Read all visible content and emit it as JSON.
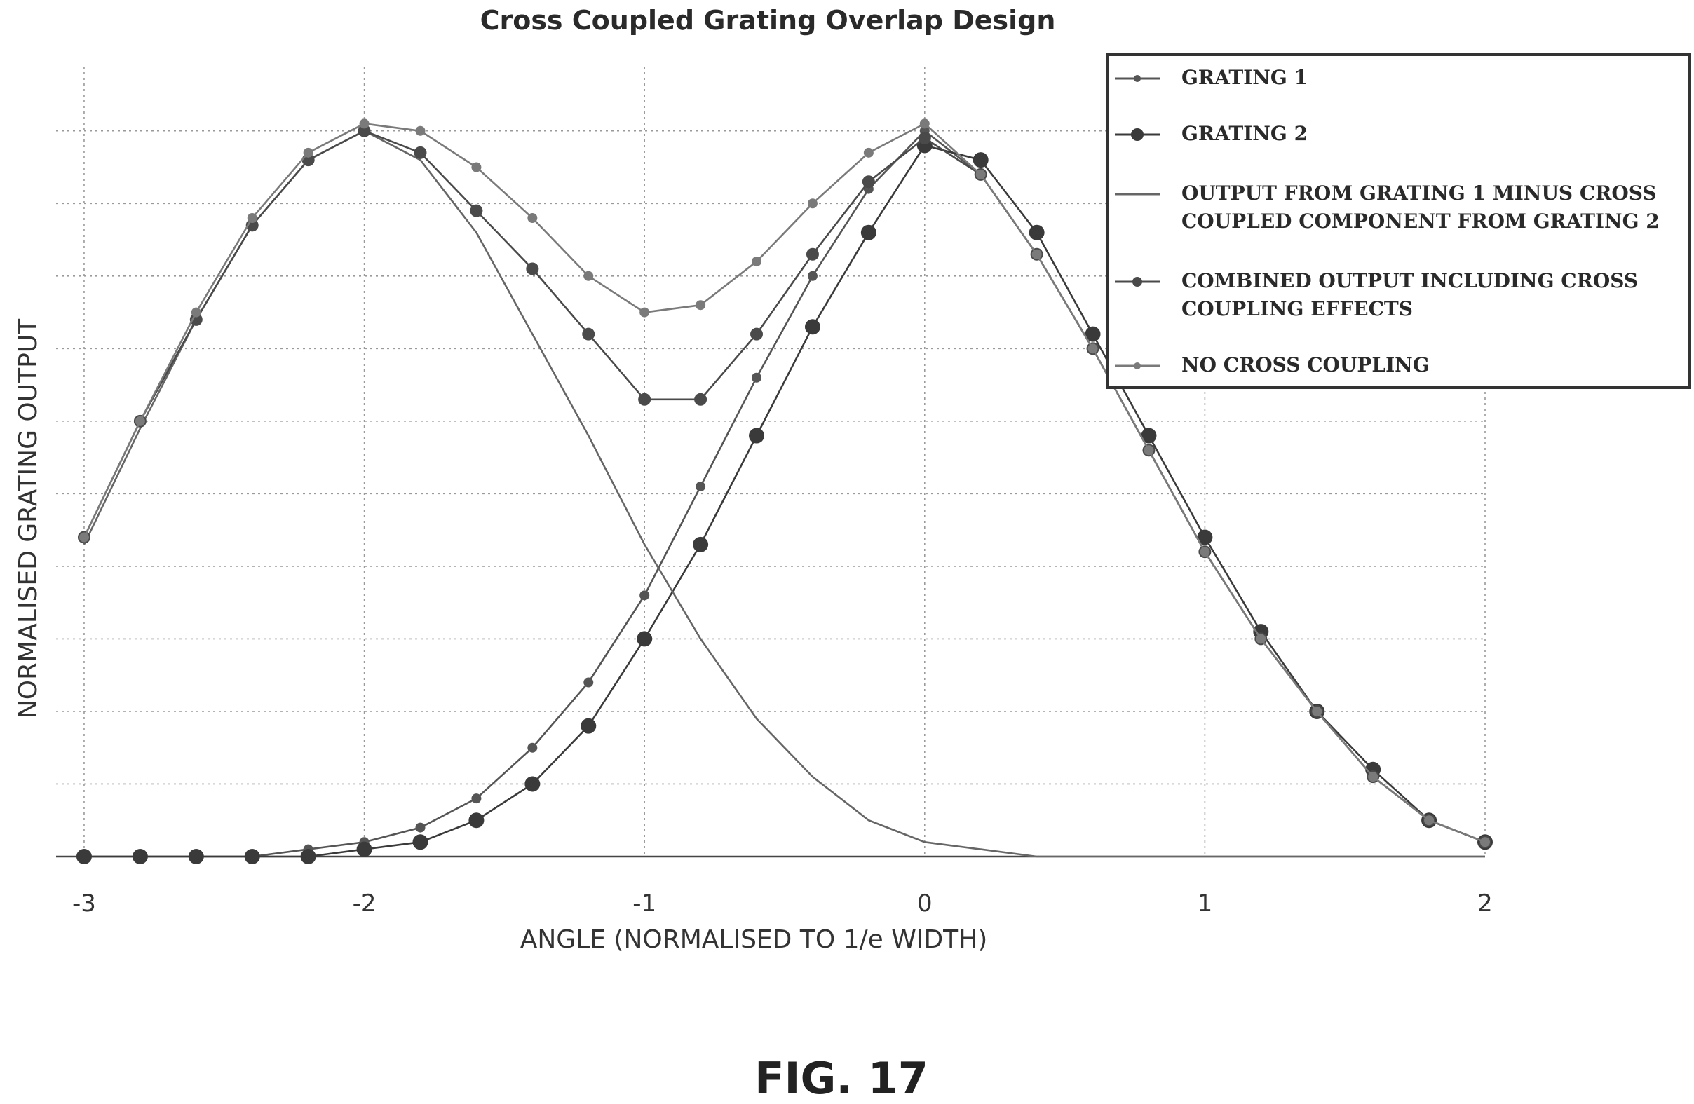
{
  "figure_caption": "FIG. 17",
  "chart_data": {
    "type": "line",
    "title": "Cross Coupled Grating Overlap Design",
    "xlabel": "ANGLE (NORMALISED TO 1/e WIDTH)",
    "ylabel": "NORMALISED GRATING OUTPUT",
    "xlim": [
      -3.1,
      2.0
    ],
    "ylim": [
      0,
      1.05
    ],
    "xticks": [
      -3,
      -2,
      -1,
      0,
      1,
      2
    ],
    "xtick_labels": [
      "-3",
      "-2",
      "-1",
      "0",
      "1",
      "2"
    ],
    "grid": true,
    "legend_position": "top-right",
    "series": [
      {
        "name": "GRATING 1",
        "marker": "small-dot",
        "color": "#555555",
        "x": [
          -3.0,
          -2.8,
          -2.6,
          -2.4,
          -2.2,
          -2.0,
          -1.8,
          -1.6,
          -1.4,
          -1.2,
          -1.0,
          -0.8,
          -0.6,
          -0.4,
          -0.2,
          0.0,
          0.2,
          0.4,
          0.6,
          0.8,
          1.0,
          1.2,
          1.4,
          1.6,
          1.8,
          2.0
        ],
        "y": [
          0.0,
          0.0,
          0.0,
          0.0,
          0.01,
          0.02,
          0.04,
          0.08,
          0.15,
          0.24,
          0.36,
          0.51,
          0.66,
          0.8,
          0.92,
          1.0,
          0.94,
          0.83,
          0.7,
          0.56,
          0.42,
          0.3,
          0.2,
          0.11,
          0.05,
          0.02
        ]
      },
      {
        "name": "GRATING 2",
        "marker": "large-dot",
        "color": "#3a3a3a",
        "x": [
          -3.0,
          -2.8,
          -2.6,
          -2.4,
          -2.2,
          -2.0,
          -1.8,
          -1.6,
          -1.4,
          -1.2,
          -1.0,
          -0.8,
          -0.6,
          -0.4,
          -0.2,
          0.0,
          0.2,
          0.4,
          0.6,
          0.8,
          1.0,
          1.2,
          1.4,
          1.6,
          1.8,
          2.0
        ],
        "y": [
          0.0,
          0.0,
          0.0,
          0.0,
          0.0,
          0.01,
          0.02,
          0.05,
          0.1,
          0.18,
          0.3,
          0.43,
          0.58,
          0.73,
          0.86,
          0.98,
          0.96,
          0.86,
          0.72,
          0.58,
          0.44,
          0.31,
          0.2,
          0.12,
          0.05,
          0.02
        ]
      },
      {
        "name": "OUTPUT FROM GRATING 1 MINUS CROSS COUPLED COMPONENT FROM GRATING 2",
        "marker": "none",
        "color": "#666666",
        "x": [
          -3.0,
          -2.8,
          -2.6,
          -2.4,
          -2.2,
          -2.0,
          -1.8,
          -1.6,
          -1.4,
          -1.2,
          -1.0,
          -0.8,
          -0.6,
          -0.4,
          -0.2,
          0.0,
          0.2,
          0.4,
          0.6,
          0.8,
          1.0,
          1.2,
          1.4,
          1.6,
          1.8,
          2.0
        ],
        "y": [
          0.43,
          0.59,
          0.74,
          0.87,
          0.96,
          1.0,
          0.96,
          0.86,
          0.72,
          0.58,
          0.43,
          0.3,
          0.19,
          0.11,
          0.05,
          0.02,
          0.01,
          0.0,
          0.0,
          0.0,
          0.0,
          0.0,
          0.0,
          0.0,
          0.0,
          0.0
        ]
      },
      {
        "name": "COMBINED OUTPUT INCLUDING CROSS COUPLING EFFECTS",
        "marker": "dot",
        "color": "#4a4a4a",
        "x": [
          -3.0,
          -2.8,
          -2.6,
          -2.4,
          -2.2,
          -2.0,
          -1.8,
          -1.6,
          -1.4,
          -1.2,
          -1.0,
          -0.8,
          -0.6,
          -0.4,
          -0.2,
          0.0,
          0.2,
          0.4,
          0.6,
          0.8,
          1.0,
          1.2,
          1.4,
          1.6,
          1.8,
          2.0
        ],
        "y": [
          0.44,
          0.6,
          0.74,
          0.87,
          0.96,
          1.0,
          0.97,
          0.89,
          0.81,
          0.72,
          0.63,
          0.63,
          0.72,
          0.83,
          0.93,
          0.99,
          0.94,
          0.83,
          0.7,
          0.56,
          0.42,
          0.3,
          0.2,
          0.11,
          0.05,
          0.02
        ]
      },
      {
        "name": "NO CROSS COUPLING",
        "marker": "small-dot",
        "color": "#7a7a7a",
        "x": [
          -3.0,
          -2.8,
          -2.6,
          -2.4,
          -2.2,
          -2.0,
          -1.8,
          -1.6,
          -1.4,
          -1.2,
          -1.0,
          -0.8,
          -0.6,
          -0.4,
          -0.2,
          0.0,
          0.2,
          0.4,
          0.6,
          0.8,
          1.0,
          1.2,
          1.4,
          1.6,
          1.8,
          2.0
        ],
        "y": [
          0.44,
          0.6,
          0.75,
          0.88,
          0.97,
          1.01,
          1.0,
          0.95,
          0.88,
          0.8,
          0.75,
          0.76,
          0.82,
          0.9,
          0.97,
          1.01,
          0.94,
          0.83,
          0.7,
          0.56,
          0.42,
          0.3,
          0.2,
          0.11,
          0.05,
          0.02
        ]
      }
    ]
  }
}
